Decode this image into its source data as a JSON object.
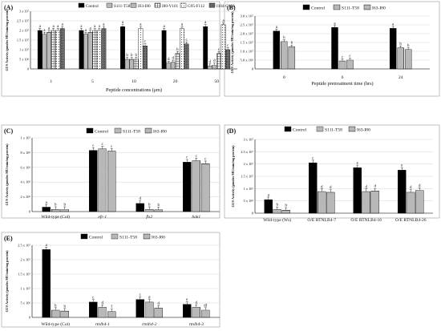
{
  "chart_data": [
    {
      "panel": "(A)",
      "type": "bar",
      "ylabel": "GUS Activity (pmoles MU/min/mg protein)",
      "xlabel": "Peptide concentrations (μm)",
      "yticks": [
        "0",
        "5 x 10⁶",
        "1 x 10⁷",
        "1.5 x 10⁷",
        "2 x 10⁷",
        "2.5 x 10⁷",
        "3 x 10⁷"
      ],
      "ylim": [
        0,
        30000000.0
      ],
      "categories": [
        "1",
        "5",
        "10",
        "20",
        "50"
      ],
      "series": [
        {
          "name": "Control",
          "fill": "black",
          "values": [
            20000000.0,
            20000000.0,
            22000000.0,
            20000000.0,
            22000000.0
          ],
          "labels": [
            "a",
            "a",
            "a",
            "a",
            "a"
          ]
        },
        {
          "name": "S111-T58",
          "fill": "vlines",
          "values": [
            18000000.0,
            18000000.0,
            5000000.0,
            3000000.0,
            1500000.0
          ],
          "labels": [
            "a",
            "a",
            "b",
            "d",
            "d"
          ]
        },
        {
          "name": "I63-I80",
          "fill": "hlines",
          "values": [
            19000000.0,
            19000000.0,
            5000000.0,
            3500000.0,
            2000000.0
          ],
          "labels": [
            "a",
            "a",
            "b",
            "d",
            "d"
          ]
        },
        {
          "name": "I80-V101",
          "fill": "grid",
          "values": [
            20000000.0,
            20000000.0,
            5000000.0,
            8000000.0,
            8000000.0
          ],
          "labels": [
            "a",
            "a",
            "b",
            "b",
            "c"
          ]
        },
        {
          "name": "G95-F112",
          "fill": "dots",
          "values": [
            20000000.0,
            20000000.0,
            21000000.0,
            21000000.0,
            23000000.0
          ],
          "labels": [
            "a",
            "a",
            "a",
            "a",
            "a"
          ]
        },
        {
          "name": "I104-G121",
          "fill": "dense",
          "values": [
            21000000.0,
            21000000.0,
            12000000.0,
            13000000.0,
            10000000.0
          ],
          "labels": [
            "a",
            "a",
            "c",
            "c",
            "c"
          ]
        }
      ]
    },
    {
      "panel": "(B)",
      "type": "bar",
      "ylabel": "GUS Activity (pmoles MU/min/mg protein)",
      "xlabel": "Peptide pretreatment time (hrs)",
      "yticks": [
        "0",
        "5.0 x 10⁶",
        "1.0 x 10⁷",
        "1.5 x 10⁷",
        "2.0 x 10⁷",
        "2.5 x 10⁷",
        "3.0 x 10⁷"
      ],
      "ylim": [
        0,
        30000000.0
      ],
      "categories": [
        "0",
        "6",
        "24"
      ],
      "series": [
        {
          "name": "Control",
          "fill": "black",
          "values": [
            21500000.0,
            23500000.0,
            23000000.0
          ],
          "labels": [
            "a",
            "a",
            "a"
          ]
        },
        {
          "name": "S111-T58",
          "fill": "vlines",
          "values": [
            15500000.0,
            4500000.0,
            12000000.0
          ],
          "labels": [
            "b",
            "c",
            "b"
          ]
        },
        {
          "name": "I63-I80",
          "fill": "hlines",
          "values": [
            12500000.0,
            5000000.0,
            11000000.0
          ],
          "labels": [
            "b",
            "c",
            "b"
          ]
        }
      ]
    },
    {
      "panel": "(C)",
      "type": "bar",
      "ylabel": "GUS Activity (pmoles MU/min/mg protein)",
      "xlabel": "",
      "yticks": [
        "0",
        "2 x 10⁶",
        "4 x 10⁶",
        "6 x 10⁶",
        "8 x 10⁶",
        "1 x 10⁷"
      ],
      "ylim": [
        0,
        10000000.0
      ],
      "categories": [
        "Wild-type (Col)",
        "efr-1",
        "fls2",
        "bak1"
      ],
      "italic": [
        false,
        true,
        true,
        true
      ],
      "series": [
        {
          "name": "Control",
          "fill": "black",
          "values": [
            600000.0,
            8300000.0,
            1100000.0,
            6700000.0
          ],
          "labels": [
            "a",
            "c",
            "d",
            "c"
          ]
        },
        {
          "name": "S111-T58",
          "fill": "vlines",
          "values": [
            300000.0,
            8500000.0,
            300000.0,
            6900000.0
          ],
          "labels": [
            "b",
            "c",
            "b",
            "c"
          ]
        },
        {
          "name": "I63-I80",
          "fill": "hlines",
          "values": [
            300000.0,
            8200000.0,
            250000.0,
            6500000.0
          ],
          "labels": [
            "b",
            "c",
            "b",
            "c"
          ]
        }
      ]
    },
    {
      "panel": "(D)",
      "type": "bar",
      "ylabel": "GUS Activity (pmoles MU/min/mg protein)",
      "xlabel": "",
      "yticks": [
        "0",
        "5 x 10⁶",
        "1 x 10⁷",
        "1.5 x 10⁷",
        "2 x 10⁷",
        "2.5 x 10⁷",
        "3 x 10⁷"
      ],
      "ylim": [
        0,
        30000000.0
      ],
      "categories": [
        "Wild-type (Ws)",
        "O/E RTNLB4-7",
        "O/E RTNLB4-16",
        "O/E RTNLB4-26"
      ],
      "italic": [
        false,
        false,
        false,
        false
      ],
      "series": [
        {
          "name": "Control",
          "fill": "black",
          "values": [
            5500000.0,
            20500000.0,
            18500000.0,
            17500000.0
          ],
          "labels": [
            "a",
            "c",
            "e",
            "e"
          ]
        },
        {
          "name": "S111-T58",
          "fill": "vlines",
          "values": [
            1500000.0,
            8800000.0,
            8800000.0,
            8500000.0
          ],
          "labels": [
            "b",
            "d",
            "d",
            "d"
          ]
        },
        {
          "name": "I63-I80",
          "fill": "hlines",
          "values": [
            1200000.0,
            8500000.0,
            9000000.0,
            9300000.0
          ],
          "labels": [
            "b",
            "d",
            "d",
            "d"
          ]
        }
      ]
    },
    {
      "panel": "(E)",
      "type": "bar",
      "ylabel": "GUS Activity (pmoles MU/min/mg protein)",
      "xlabel": "",
      "yticks": [
        "0",
        "5 x 10⁶",
        "1 x 10⁷",
        "1.5 x 10⁷",
        "2 x 10⁷",
        "2.5 x 10⁷"
      ],
      "ylim": [
        0,
        25000000.0
      ],
      "categories": [
        "Wild-type (Col)",
        "rtnlb4-1",
        "rtnlb4-2",
        "rtnlb4-3"
      ],
      "italic": [
        false,
        true,
        true,
        true
      ],
      "series": [
        {
          "name": "Control",
          "fill": "black",
          "values": [
            23500000.0,
            5300000.0,
            6200000.0,
            4500000.0
          ],
          "labels": [
            "a",
            "c",
            "c",
            "e"
          ]
        },
        {
          "name": "S111-T58",
          "fill": "vlines",
          "values": [
            2500000.0,
            3500000.0,
            5300000.0,
            3500000.0
          ],
          "labels": [
            "b",
            "d",
            "d",
            "d"
          ]
        },
        {
          "name": "I63-I80",
          "fill": "hlines",
          "values": [
            2200000.0,
            2000000.0,
            3200000.0,
            2500000.0
          ],
          "labels": [
            "b",
            "f",
            "d",
            "df"
          ]
        }
      ]
    }
  ]
}
